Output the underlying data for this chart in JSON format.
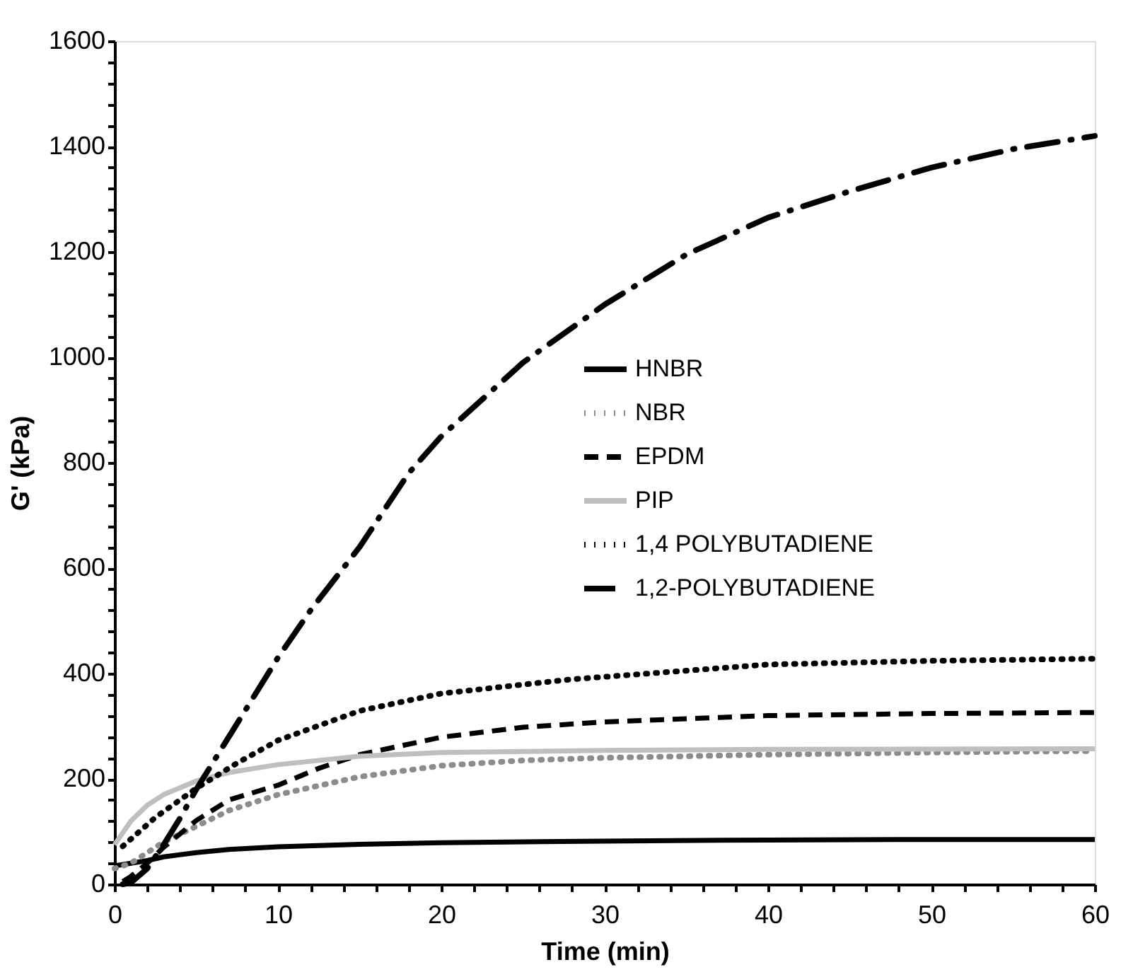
{
  "chart_data": {
    "type": "line",
    "xlabel": "Time (min)",
    "ylabel": "G' (kPa)",
    "xlim": [
      0,
      60
    ],
    "ylim": [
      0,
      1600
    ],
    "xticks": [
      0,
      {
        "value": 2,
        "label": null
      },
      {
        "value": 4,
        "label": null
      },
      {
        "value": 6,
        "label": null
      },
      {
        "value": 8,
        "label": null
      },
      10,
      {
        "value": 12,
        "label": null
      },
      {
        "value": 14,
        "label": null
      },
      {
        "value": 16,
        "label": null
      },
      {
        "value": 18,
        "label": null
      },
      20,
      {
        "value": 22,
        "label": null
      },
      {
        "value": 24,
        "label": null
      },
      {
        "value": 26,
        "label": null
      },
      {
        "value": 28,
        "label": null
      },
      30,
      {
        "value": 32,
        "label": null
      },
      {
        "value": 34,
        "label": null
      },
      {
        "value": 36,
        "label": null
      },
      {
        "value": 38,
        "label": null
      },
      40,
      {
        "value": 42,
        "label": null
      },
      {
        "value": 44,
        "label": null
      },
      {
        "value": 46,
        "label": null
      },
      {
        "value": 48,
        "label": null
      },
      50,
      {
        "value": 52,
        "label": null
      },
      {
        "value": 54,
        "label": null
      },
      {
        "value": 56,
        "label": null
      },
      {
        "value": 58,
        "label": null
      },
      60
    ],
    "yticks": [
      0,
      {
        "value": 40,
        "label": null
      },
      {
        "value": 80,
        "label": null
      },
      {
        "value": 120,
        "label": null
      },
      {
        "value": 160,
        "label": null
      },
      200,
      {
        "value": 240,
        "label": null
      },
      {
        "value": 280,
        "label": null
      },
      {
        "value": 320,
        "label": null
      },
      {
        "value": 360,
        "label": null
      },
      400,
      {
        "value": 440,
        "label": null
      },
      {
        "value": 480,
        "label": null
      },
      {
        "value": 520,
        "label": null
      },
      {
        "value": 560,
        "label": null
      },
      600,
      {
        "value": 640,
        "label": null
      },
      {
        "value": 680,
        "label": null
      },
      {
        "value": 720,
        "label": null
      },
      {
        "value": 760,
        "label": null
      },
      800,
      {
        "value": 840,
        "label": null
      },
      {
        "value": 880,
        "label": null
      },
      {
        "value": 920,
        "label": null
      },
      {
        "value": 960,
        "label": null
      },
      1000,
      {
        "value": 1040,
        "label": null
      },
      {
        "value": 1080,
        "label": null
      },
      {
        "value": 1120,
        "label": null
      },
      {
        "value": 1160,
        "label": null
      },
      1200,
      {
        "value": 1240,
        "label": null
      },
      {
        "value": 1280,
        "label": null
      },
      {
        "value": 1320,
        "label": null
      },
      {
        "value": 1360,
        "label": null
      },
      1400,
      {
        "value": 1440,
        "label": null
      },
      {
        "value": 1480,
        "label": null
      },
      {
        "value": 1520,
        "label": null
      },
      {
        "value": 1560,
        "label": null
      },
      1600
    ],
    "grid": false,
    "legend": "right",
    "marker": "none",
    "series": [
      {
        "name": "HNBR",
        "color": "#000000",
        "line_style": "solid",
        "x": [
          0,
          1,
          2,
          3,
          5,
          7,
          10,
          15,
          20,
          30,
          40,
          50,
          60
        ],
        "values": [
          35,
          40,
          45,
          52,
          60,
          66,
          71,
          76,
          79,
          82,
          84,
          85,
          85
        ]
      },
      {
        "name": "NBR",
        "color": "#8c8c8c",
        "line_style": "dotted",
        "x": [
          0,
          1,
          2,
          3,
          5,
          7,
          10,
          15,
          20,
          25,
          30,
          40,
          50,
          60
        ],
        "values": [
          30,
          40,
          60,
          80,
          110,
          140,
          170,
          204,
          225,
          235,
          240,
          246,
          250,
          253
        ]
      },
      {
        "name": "EPDM",
        "color": "#000000",
        "line_style": "dashed",
        "x": [
          0.5,
          1,
          2,
          3,
          5,
          7,
          10,
          12.5,
          15,
          20,
          25,
          30,
          40,
          50,
          60
        ],
        "values": [
          5,
          15,
          40,
          70,
          121,
          160,
          188,
          220,
          246,
          279,
          298,
          308,
          320,
          324,
          326
        ]
      },
      {
        "name": "PIP",
        "color": "#bfbfbf",
        "line_style": "solid",
        "x": [
          0,
          1,
          2,
          3,
          5,
          7,
          10,
          15,
          20,
          30,
          40,
          60
        ],
        "values": [
          75,
          120,
          150,
          170,
          196,
          212,
          227,
          243,
          250,
          254,
          256,
          257
        ]
      },
      {
        "name": "1,4 POLYBUTADIENE",
        "color": "#000000",
        "line_style": "dotted",
        "x": [
          0.5,
          2.5,
          5,
          7.5,
          10,
          15,
          20,
          28,
          40,
          50,
          60
        ],
        "values": [
          72,
          127,
          182,
          230,
          273,
          329,
          362,
          389,
          417,
          424,
          428
        ]
      },
      {
        "name": "1,2-POLYBUTADIENE",
        "color": "#000000",
        "line_style": "dashdot",
        "x": [
          0.5,
          1,
          2,
          3,
          4,
          5,
          6,
          8,
          10,
          12,
          15,
          18,
          20,
          25,
          30,
          35,
          40,
          45,
          50,
          55,
          60
        ],
        "values": [
          0,
          3,
          30,
          75,
          125,
          180,
          230,
          330,
          430,
          520,
          640,
          780,
          850,
          990,
          1100,
          1195,
          1265,
          1315,
          1360,
          1395,
          1420
        ]
      }
    ]
  }
}
